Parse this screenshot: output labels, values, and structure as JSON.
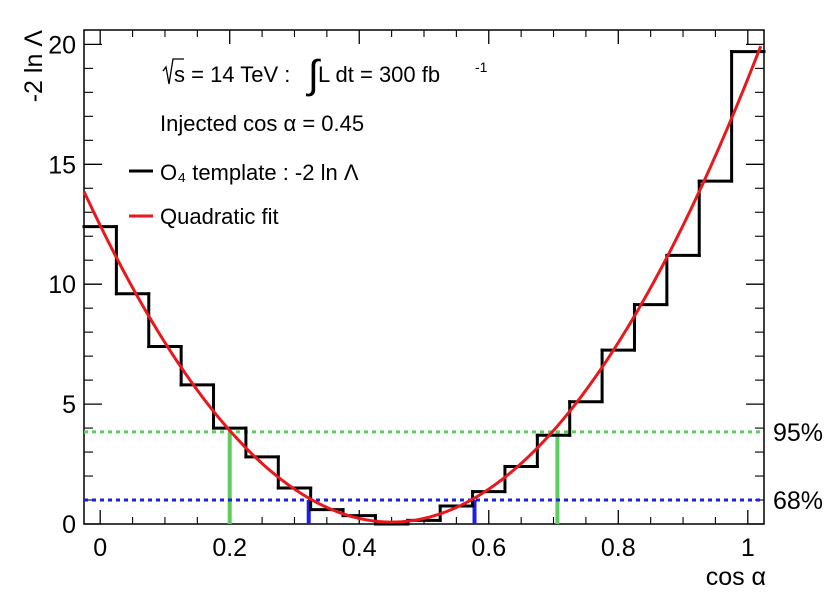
{
  "chart_data": {
    "type": "line",
    "title": "",
    "xlabel": "cos α",
    "ylabel": "-2 ln Λ",
    "xlim": [
      -0.025,
      1.025
    ],
    "ylim": [
      0,
      20.6
    ],
    "x_ticks": [
      0,
      0.2,
      0.4,
      0.6,
      0.8,
      1
    ],
    "x_tick_labels": [
      "0",
      "0.2",
      "0.4",
      "0.6",
      "0.8",
      "1"
    ],
    "y_ticks": [
      0,
      5,
      10,
      15,
      20
    ],
    "y_tick_labels": [
      "0",
      "5",
      "10",
      "15",
      "20"
    ],
    "annotations": {
      "energy_prefix": "s = 14 TeV : ",
      "energy_int": "∫",
      "energy_lumi": " L dt = 300 fb",
      "energy_sup": "-1",
      "injected": "Injected cos α = 0.45"
    },
    "legend": [
      {
        "name": "O₄ template : -2 ln Λ",
        "color": "#000000",
        "style": "step"
      },
      {
        "name": "Quadratic fit",
        "color": "#e8181c",
        "style": "line"
      }
    ],
    "histogram": {
      "name": "O₄ template : -2 ln Λ",
      "bin_edges": [
        -0.025,
        0.025,
        0.075,
        0.125,
        0.175,
        0.225,
        0.275,
        0.325,
        0.375,
        0.425,
        0.475,
        0.525,
        0.575,
        0.625,
        0.675,
        0.725,
        0.775,
        0.825,
        0.875,
        0.925,
        0.975,
        1.025
      ],
      "values": [
        12.4,
        9.6,
        7.4,
        5.8,
        4.0,
        2.8,
        1.5,
        0.6,
        0.35,
        0.0,
        0.15,
        0.75,
        1.35,
        2.4,
        3.7,
        5.1,
        7.25,
        9.15,
        11.2,
        14.3,
        19.7
      ],
      "color": "#000000"
    },
    "fit": {
      "name": "Quadratic fit",
      "center": 0.45,
      "minimum": 0.08,
      "curvature": 61.1,
      "x_range": [
        -0.025,
        1.02
      ],
      "color": "#e8181c"
    },
    "levels": [
      {
        "label": "95%",
        "y": 3.84,
        "color": "#5ecb5e",
        "lower": 0.2,
        "upper": 0.706
      },
      {
        "label": "68%",
        "y": 1.0,
        "color": "#1e1ee8",
        "lower": 0.322,
        "upper": 0.578
      }
    ]
  }
}
